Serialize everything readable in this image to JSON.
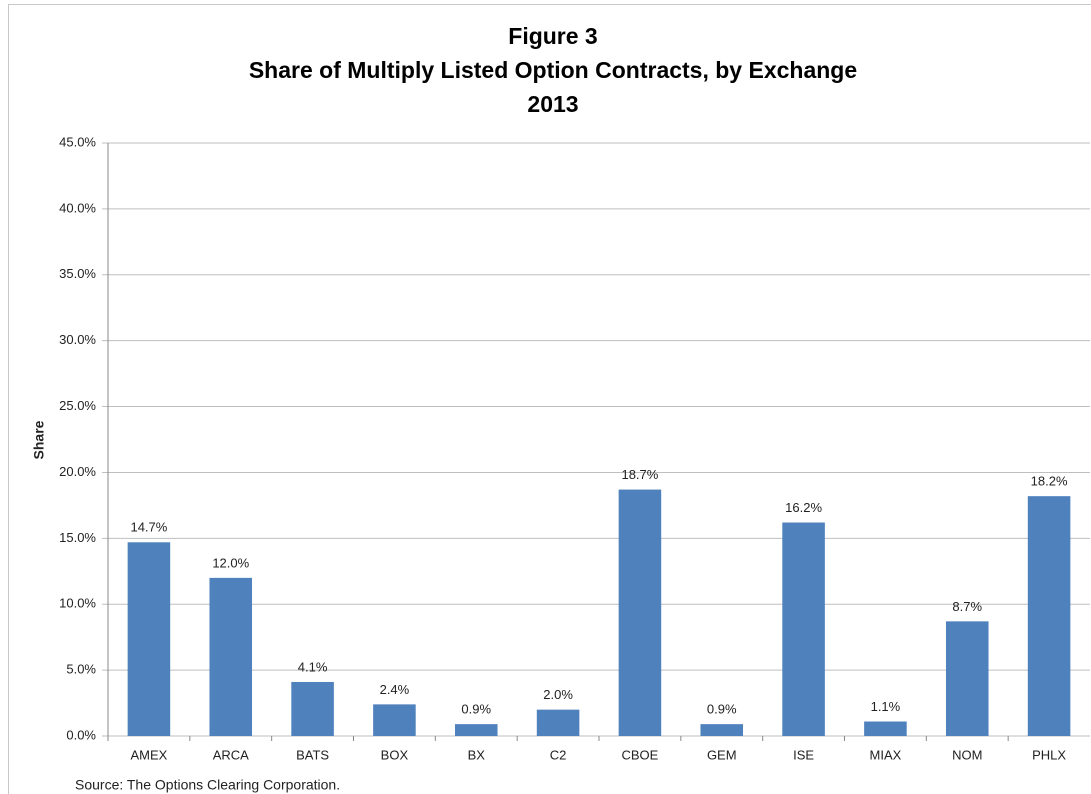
{
  "chart_data": {
    "type": "bar",
    "title": [
      "Figure 3",
      "Share of Multiply Listed Option Contracts, by Exchange",
      "2013"
    ],
    "ylabel": "Share",
    "source": "Source: The Options Clearing Corporation.",
    "categories": [
      "AMEX",
      "ARCA",
      "BATS",
      "BOX",
      "BX",
      "C2",
      "CBOE",
      "GEM",
      "ISE",
      "MIAX",
      "NOM",
      "PHLX"
    ],
    "values": [
      14.7,
      12.0,
      4.1,
      2.4,
      0.9,
      2.0,
      18.7,
      0.9,
      16.2,
      1.1,
      8.7,
      18.2
    ],
    "value_labels": [
      "14.7%",
      "12.0%",
      "4.1%",
      "2.4%",
      "0.9%",
      "2.0%",
      "18.7%",
      "0.9%",
      "16.2%",
      "1.1%",
      "8.7%",
      "18.2%"
    ],
    "color": "#4f81bd",
    "ylim": [
      0,
      45
    ],
    "yticks": [
      {
        "value": 0,
        "label": "0.0%"
      },
      {
        "value": 5,
        "label": "5.0%"
      },
      {
        "value": 10,
        "label": "10.0%"
      },
      {
        "value": 15,
        "label": "15.0%"
      },
      {
        "value": 20,
        "label": "20.0%"
      },
      {
        "value": 25,
        "label": "25.0%"
      },
      {
        "value": 30,
        "label": "30.0%"
      },
      {
        "value": 35,
        "label": "35.0%"
      },
      {
        "value": 40,
        "label": "40.0%"
      },
      {
        "value": 45,
        "label": "45.0%"
      }
    ],
    "grid": true
  }
}
